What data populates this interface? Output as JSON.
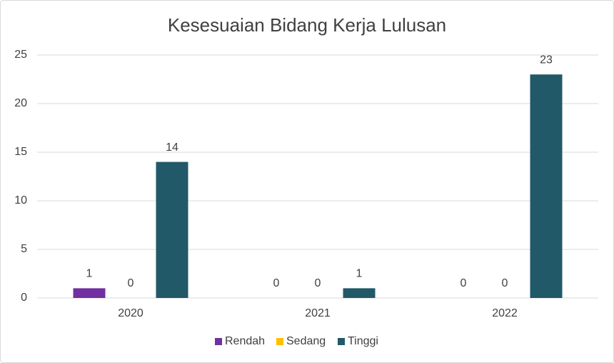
{
  "chart_data": {
    "type": "bar",
    "title": "Kesesuaian Bidang Kerja Lulusan",
    "categories": [
      "2020",
      "2021",
      "2022"
    ],
    "series": [
      {
        "name": "Rendah",
        "color": "#7030a0",
        "values": [
          1,
          0,
          0
        ]
      },
      {
        "name": "Sedang",
        "color": "#ffc000",
        "values": [
          0,
          0,
          0
        ]
      },
      {
        "name": "Tinggi",
        "color": "#215968",
        "values": [
          14,
          1,
          23
        ]
      }
    ],
    "ylim": [
      0,
      25
    ],
    "yticks": [
      0,
      5,
      10,
      15,
      20,
      25
    ],
    "grid": true,
    "legend": "bottom",
    "data_labels": true
  }
}
